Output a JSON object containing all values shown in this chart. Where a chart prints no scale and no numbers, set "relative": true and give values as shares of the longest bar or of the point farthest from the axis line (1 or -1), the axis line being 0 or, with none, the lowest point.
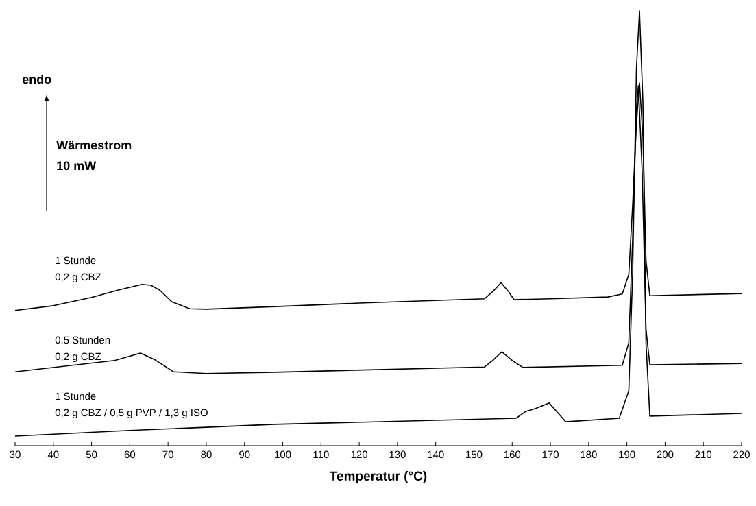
{
  "chart_data": {
    "type": "line",
    "relative": true,
    "xlabel": "Temperatur (°C)",
    "annotations": [
      "endo",
      "Wärmestrom",
      "10 mW"
    ],
    "xlim": [
      30,
      220
    ],
    "xticks": [
      30,
      40,
      50,
      60,
      70,
      80,
      90,
      100,
      110,
      120,
      130,
      140,
      150,
      160,
      170,
      180,
      190,
      200,
      210,
      220
    ],
    "series": [
      {
        "name": "1 Stunde 0,2 g CBZ",
        "color": "#000000",
        "x": [
          30,
          40,
          50,
          57,
          63.2,
          65.5,
          67.8,
          71,
          75.7,
          80,
          98,
          120,
          152.8,
          155,
          157.1,
          159,
          160.5,
          170,
          185,
          188.8,
          190.5,
          191.5,
          192.5,
          193.3,
          194.2,
          195,
          196,
          220
        ],
        "values": [
          0.311,
          0.322,
          0.341,
          0.358,
          0.371,
          0.369,
          0.358,
          0.331,
          0.315,
          0.314,
          0.32,
          0.328,
          0.338,
          0.355,
          0.375,
          0.355,
          0.336,
          0.338,
          0.342,
          0.349,
          0.394,
          0.552,
          0.741,
          0.834,
          0.71,
          0.426,
          0.345,
          0.35
        ]
      },
      {
        "name": "0,5 Stunden 0,2 g CBZ",
        "color": "#000000",
        "x": [
          30,
          56,
          62.8,
          66.7,
          71.4,
          80,
          97.8,
          152.8,
          155,
          157.3,
          160,
          162.8,
          188.8,
          190.5,
          191.5,
          192.5,
          193,
          194,
          195,
          196,
          220
        ],
        "values": [
          0.17,
          0.196,
          0.213,
          0.197,
          0.17,
          0.166,
          0.169,
          0.181,
          0.197,
          0.216,
          0.196,
          0.18,
          0.185,
          0.237,
          0.473,
          0.773,
          0.828,
          0.631,
          0.268,
          0.186,
          0.189
        ]
      },
      {
        "name": "1 Stunde 0,2 g CBZ / 0,5 g PVP / 1,3 g ISO",
        "color": "#000000",
        "x": [
          30,
          60,
          97.8,
          161,
          163.6,
          166,
          169.7,
          171.3,
          174,
          188,
          190.5,
          191.5,
          192.5,
          193.3,
          194.2,
          195,
          196,
          220
        ],
        "values": [
          0.022,
          0.035,
          0.049,
          0.063,
          0.079,
          0.085,
          0.098,
          0.082,
          0.055,
          0.063,
          0.126,
          0.394,
          0.868,
          1.0,
          0.789,
          0.237,
          0.068,
          0.074
        ]
      }
    ]
  }
}
